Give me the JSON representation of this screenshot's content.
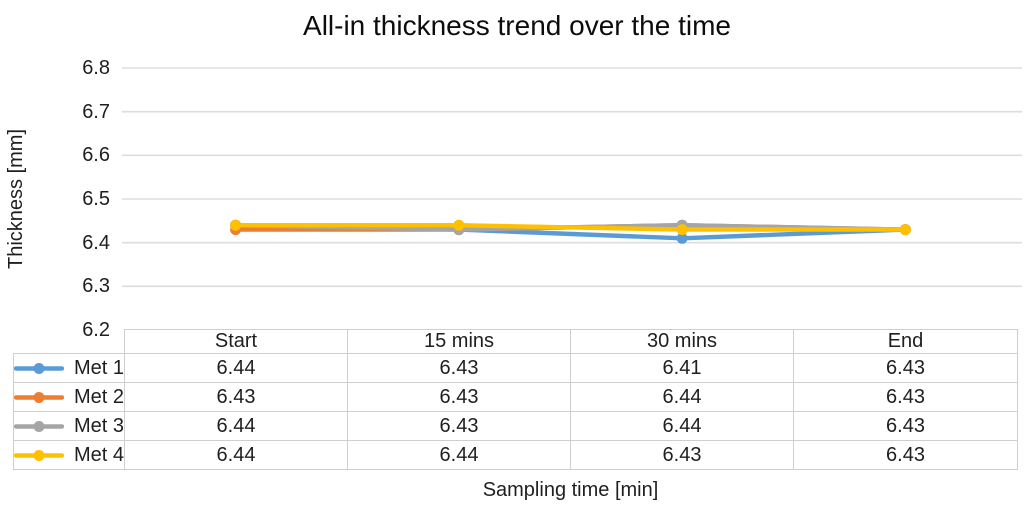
{
  "chart": {
    "title": "All-in thickness trend over the time",
    "y_axis_label": "Thickness [mm]",
    "x_axis_label": "Sampling time [min]"
  },
  "chart_data": {
    "type": "line",
    "title": "All-in thickness trend over the time",
    "xlabel": "Sampling time [min]",
    "ylabel": "Thickness [mm]",
    "categories": [
      "Start",
      "15 mins",
      "30 mins",
      "End"
    ],
    "series": [
      {
        "name": "Met 1",
        "color": "#5B9BD5",
        "values": [
          6.44,
          6.43,
          6.41,
          6.43
        ]
      },
      {
        "name": "Met 2",
        "color": "#ED7D31",
        "values": [
          6.43,
          6.43,
          6.44,
          6.43
        ]
      },
      {
        "name": "Met 3",
        "color": "#A5A5A5",
        "values": [
          6.44,
          6.43,
          6.44,
          6.43
        ]
      },
      {
        "name": "Met 4",
        "color": "#FFC000",
        "values": [
          6.44,
          6.44,
          6.43,
          6.43
        ]
      }
    ],
    "ylim": [
      6.2,
      6.8
    ],
    "ytick_step": 0.1,
    "ytick_labels": [
      "6.8",
      "6.7",
      "6.6",
      "6.5",
      "6.4",
      "6.3",
      "6.2"
    ],
    "grid": true,
    "legend_position": "table-left",
    "marker": "circle",
    "data_table_shown": true
  },
  "colors": {
    "gridline": "#dddddd",
    "table_border": "#cfcfcf",
    "text": "#1f1f1f"
  }
}
